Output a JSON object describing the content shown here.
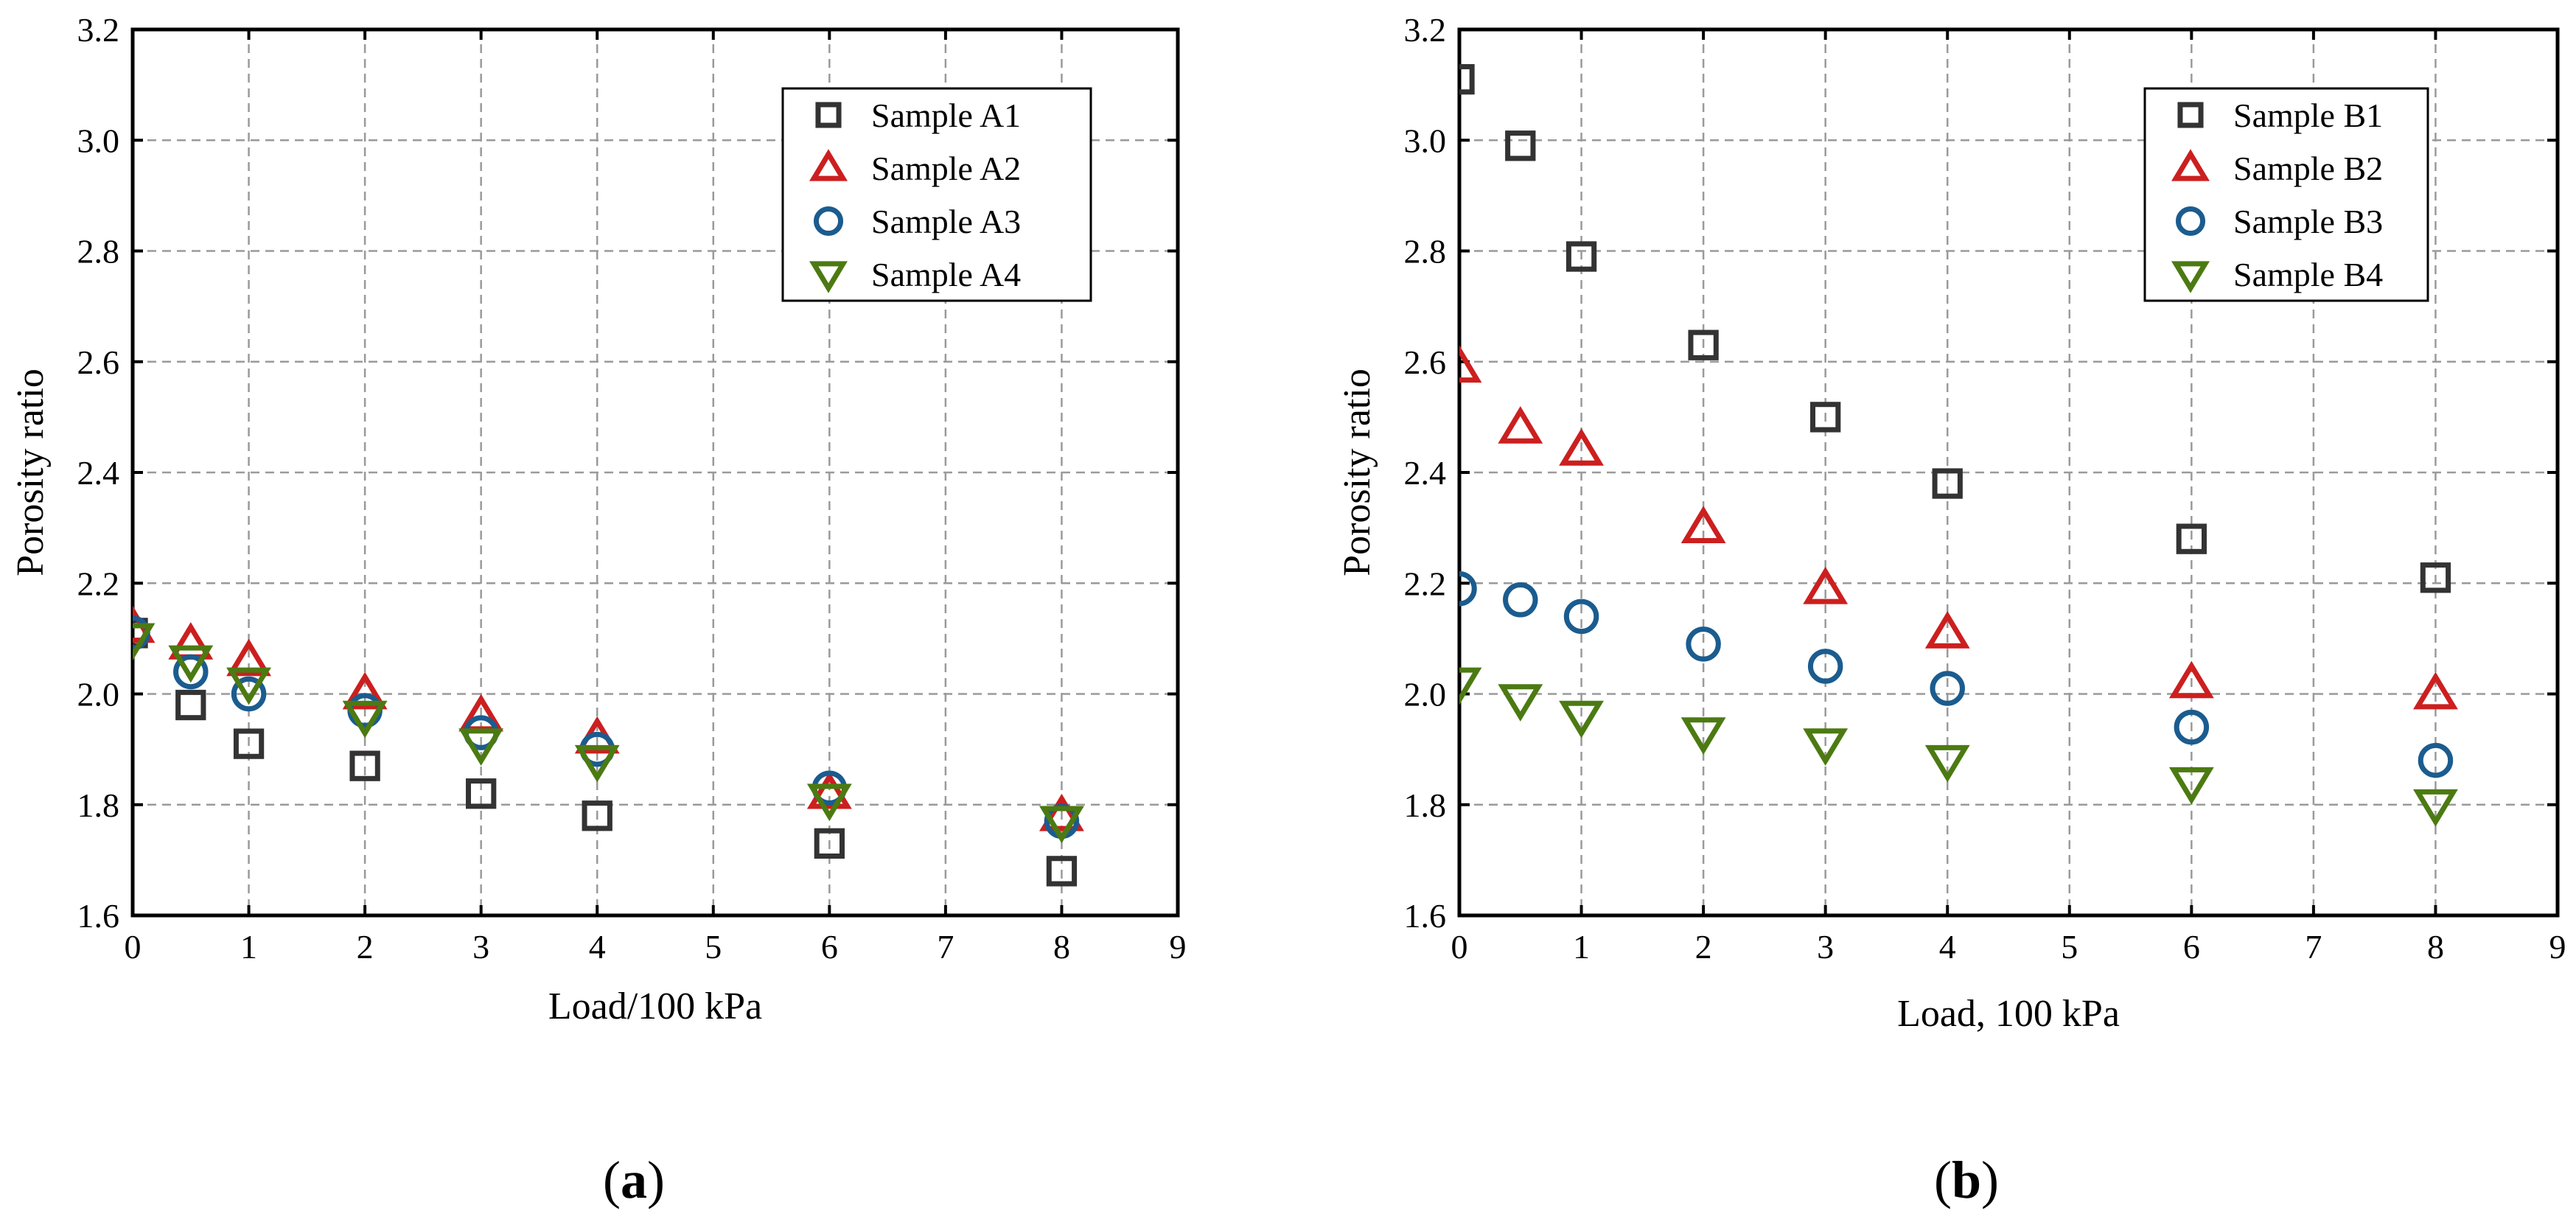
{
  "colors": {
    "black": "#333333",
    "red": "#cc1f1f",
    "blue": "#1b5c8f",
    "green": "#4c7a12"
  },
  "chart_data": [
    {
      "type": "scatter",
      "panel_label": "a",
      "xlabel": "Load/100 kPa",
      "ylabel": "Porosity ratio",
      "xlim": [
        0,
        9
      ],
      "ylim": [
        1.6,
        3.2
      ],
      "x_ticks": [
        "0",
        "1",
        "2",
        "3",
        "4",
        "5",
        "6",
        "7",
        "8",
        "9"
      ],
      "y_ticks": [
        "1.6",
        "1.8",
        "2.0",
        "2.2",
        "2.4",
        "2.6",
        "2.8",
        "3.0",
        "3.2"
      ],
      "grid": true,
      "legend_position": "top-right",
      "x": [
        0,
        0.5,
        1,
        2,
        3,
        4,
        6,
        8
      ],
      "series": [
        {
          "name": "Sample A1",
          "marker": "square",
          "color": "black",
          "values": [
            2.11,
            1.98,
            1.91,
            1.87,
            1.82,
            1.78,
            1.73,
            1.68
          ]
        },
        {
          "name": "Sample A2",
          "marker": "triangle-up",
          "color": "red",
          "values": [
            2.12,
            2.09,
            2.06,
            2.0,
            1.96,
            1.92,
            1.82,
            1.78
          ]
        },
        {
          "name": "Sample A3",
          "marker": "circle",
          "color": "blue",
          "values": [
            2.11,
            2.04,
            2.0,
            1.97,
            1.93,
            1.9,
            1.83,
            1.77
          ]
        },
        {
          "name": "Sample A4",
          "marker": "triangle-down",
          "color": "green",
          "values": [
            2.1,
            2.06,
            2.02,
            1.96,
            1.91,
            1.88,
            1.81,
            1.77
          ]
        }
      ]
    },
    {
      "type": "scatter",
      "panel_label": "b",
      "xlabel": "Load, 100 kPa",
      "ylabel": "Porosity ratio",
      "xlim": [
        0,
        9
      ],
      "ylim": [
        1.6,
        3.2
      ],
      "x_ticks": [
        "0",
        "1",
        "2",
        "3",
        "4",
        "5",
        "6",
        "7",
        "8",
        "9"
      ],
      "y_ticks": [
        "1.6",
        "1.8",
        "2.0",
        "2.2",
        "2.4",
        "2.6",
        "2.8",
        "3.0",
        "3.2"
      ],
      "grid": true,
      "legend_position": "top-right",
      "x": [
        0,
        0.5,
        1,
        2,
        3,
        4,
        6,
        8
      ],
      "series": [
        {
          "name": "Sample B1",
          "marker": "square",
          "color": "black",
          "values": [
            3.11,
            2.99,
            2.79,
            2.63,
            2.5,
            2.38,
            2.28,
            2.21
          ]
        },
        {
          "name": "Sample B2",
          "marker": "triangle-up",
          "color": "red",
          "values": [
            2.59,
            2.48,
            2.44,
            2.3,
            2.19,
            2.11,
            2.02,
            2.0
          ]
        },
        {
          "name": "Sample B3",
          "marker": "circle",
          "color": "blue",
          "values": [
            2.19,
            2.17,
            2.14,
            2.09,
            2.05,
            2.01,
            1.94,
            1.88
          ]
        },
        {
          "name": "Sample B4",
          "marker": "triangle-down",
          "color": "green",
          "values": [
            2.02,
            1.99,
            1.96,
            1.93,
            1.91,
            1.88,
            1.84,
            1.8
          ]
        }
      ]
    }
  ]
}
